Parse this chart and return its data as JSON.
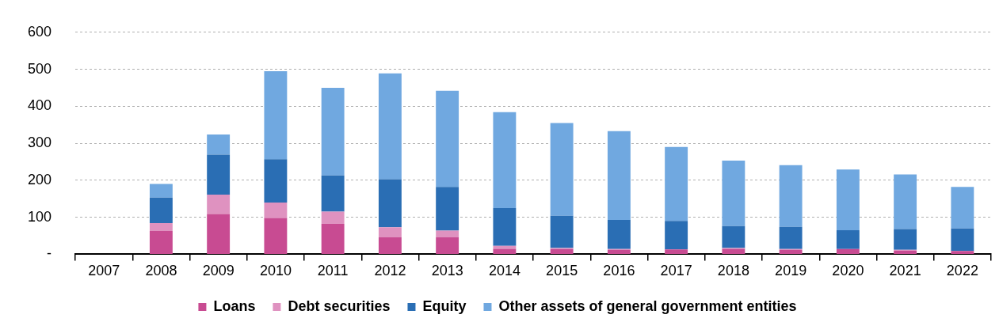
{
  "chart_data": {
    "type": "bar",
    "stacked": true,
    "categories": [
      "2007",
      "2008",
      "2009",
      "2010",
      "2011",
      "2012",
      "2013",
      "2014",
      "2015",
      "2016",
      "2017",
      "2018",
      "2019",
      "2020",
      "2021",
      "2022"
    ],
    "series": [
      {
        "name": "Loans",
        "color": "#c84b92",
        "values": [
          null,
          63,
          109,
          98,
          82,
          46,
          46,
          15,
          14,
          12,
          13,
          15,
          12,
          14,
          10,
          9
        ]
      },
      {
        "name": "Debt securities",
        "color": "#df92c0",
        "values": [
          null,
          21,
          52,
          42,
          33,
          27,
          18,
          8,
          3,
          2,
          0,
          2,
          2,
          0,
          2,
          0
        ]
      },
      {
        "name": "Equity",
        "color": "#2a6eb4",
        "values": [
          null,
          69,
          108,
          117,
          98,
          130,
          118,
          102,
          87,
          79,
          77,
          59,
          60,
          51,
          56,
          61
        ]
      },
      {
        "name": "Other assets of general government entities",
        "color": "#70a8e0",
        "values": [
          null,
          37,
          55,
          238,
          237,
          286,
          260,
          259,
          251,
          240,
          200,
          177,
          167,
          164,
          148,
          112
        ]
      }
    ],
    "ylim": [
      0,
      600
    ],
    "yticks": [
      {
        "value": 0,
        "label": "-"
      },
      100,
      200,
      300,
      400,
      500,
      600
    ],
    "grid": "y",
    "legend": "bottom"
  }
}
